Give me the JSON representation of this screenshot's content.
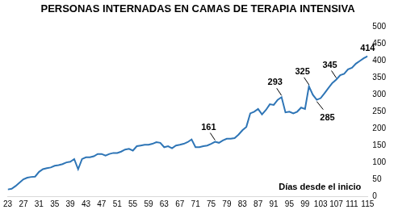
{
  "chart_data": {
    "type": "line",
    "title": "PERSONAS INTERNADAS EN CAMAS DE TERAPIA INTENSIVA",
    "x_label": "Días desde el inicio",
    "x": [
      23,
      24,
      25,
      26,
      27,
      28,
      29,
      30,
      31,
      32,
      33,
      34,
      35,
      36,
      37,
      38,
      39,
      40,
      41,
      42,
      43,
      44,
      45,
      46,
      47,
      48,
      49,
      50,
      51,
      52,
      53,
      54,
      55,
      56,
      57,
      58,
      59,
      60,
      61,
      62,
      63,
      64,
      65,
      66,
      67,
      68,
      69,
      70,
      71,
      72,
      73,
      74,
      75,
      76,
      77,
      78,
      79,
      80,
      81,
      82,
      83,
      84,
      85,
      86,
      87,
      88,
      89,
      90,
      91,
      92,
      93,
      94,
      95,
      96,
      97,
      98,
      99,
      100,
      101,
      102,
      103,
      104,
      105,
      106,
      107,
      108,
      109,
      110,
      111,
      112,
      113,
      114,
      115
    ],
    "values": [
      20,
      22,
      30,
      40,
      50,
      55,
      57,
      58,
      72,
      80,
      83,
      85,
      90,
      92,
      95,
      100,
      102,
      110,
      80,
      110,
      115,
      115,
      118,
      125,
      125,
      120,
      125,
      128,
      128,
      132,
      138,
      140,
      135,
      148,
      150,
      152,
      152,
      155,
      160,
      158,
      145,
      148,
      142,
      150,
      152,
      155,
      160,
      168,
      145,
      145,
      148,
      150,
      155,
      161,
      158,
      165,
      170,
      170,
      172,
      182,
      195,
      205,
      245,
      250,
      258,
      242,
      255,
      272,
      270,
      285,
      293,
      248,
      250,
      245,
      250,
      262,
      258,
      325,
      300,
      285,
      290,
      305,
      320,
      335,
      345,
      358,
      362,
      375,
      380,
      392,
      400,
      408,
      414
    ],
    "color": "#2e75b6",
    "annotations": [
      {
        "x": 76,
        "y": 161,
        "text": "161"
      },
      {
        "x": 93,
        "y": 293,
        "text": "293"
      },
      {
        "x": 100,
        "y": 325,
        "text": "325"
      },
      {
        "x": 102,
        "y": 285,
        "text": "285"
      },
      {
        "x": 107,
        "y": 345,
        "text": "345"
      },
      {
        "x": 115,
        "y": 414,
        "text": "414"
      }
    ],
    "xlim": [
      23,
      115
    ],
    "xticks": [
      23,
      27,
      31,
      35,
      39,
      43,
      47,
      51,
      55,
      59,
      63,
      67,
      71,
      75,
      79,
      83,
      87,
      91,
      95,
      99,
      103,
      107,
      111,
      115
    ],
    "ylim": [
      0,
      500
    ],
    "yticks": [
      0,
      50,
      100,
      150,
      200,
      250,
      300,
      350,
      400,
      450,
      500
    ],
    "grid": false
  }
}
